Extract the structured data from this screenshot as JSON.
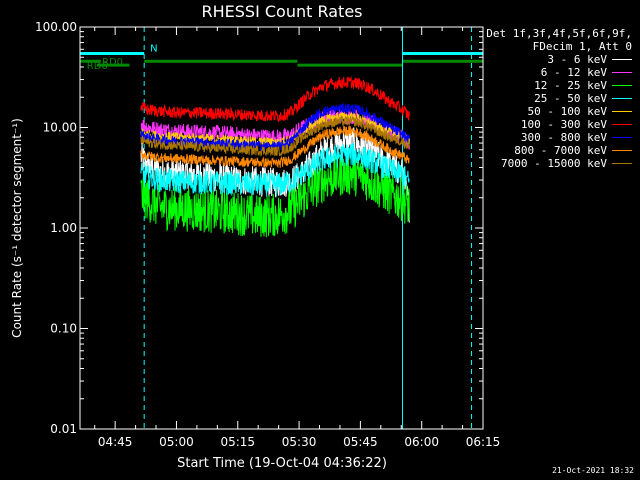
{
  "chart_data": {
    "type": "line",
    "title": "RHESSI Count Rates",
    "xlabel": "Start Time (19-Oct-04 04:36:22)",
    "ylabel": "Count Rate (s⁻¹ detector segment⁻¹)",
    "yscale": "log",
    "ylim": [
      0.01,
      100
    ],
    "yticks": [
      "0.01",
      "0.10",
      "1.00",
      "10.00",
      "100.00"
    ],
    "xticks": [
      "04:45",
      "05:00",
      "05:15",
      "05:30",
      "05:45",
      "06:00",
      "06:15"
    ],
    "xlim_minutes": [
      36.4,
      135.0
    ],
    "legend": {
      "position": "outside-right",
      "header": [
        "Det 1f,3f,4f,5f,6f,9f,",
        "FDecim 1, Att 0"
      ]
    },
    "series": [
      {
        "name": "3 - 6 keV",
        "color": "#ffffff",
        "noise": 0.15,
        "x": [
          51.3,
          53,
          56,
          60,
          65,
          70,
          75,
          80,
          85,
          88,
          90,
          93,
          96,
          100,
          103,
          105,
          107,
          110,
          112.2,
          115.3,
          117
        ],
        "y": [
          5.2,
          4.2,
          3.6,
          3.5,
          3.4,
          3.2,
          3.0,
          2.9,
          2.8,
          2.9,
          3.3,
          4.3,
          5.8,
          7.0,
          7.2,
          6.7,
          6.0,
          5.0,
          4.3,
          3.5,
          1.6
        ]
      },
      {
        "name": "6 - 12 keV",
        "color": "#ff33ff",
        "noise": 0.08,
        "x": [
          51.3,
          53,
          56,
          60,
          65,
          70,
          75,
          80,
          85,
          88,
          90,
          93,
          96,
          100,
          103,
          105,
          107,
          110,
          112.2,
          115.3,
          117
        ],
        "y": [
          11,
          10,
          9.5,
          9.2,
          9.0,
          8.8,
          8.5,
          8.2,
          8.0,
          8.3,
          9.5,
          11,
          12.5,
          13,
          13,
          12.5,
          11.5,
          10,
          9,
          8,
          6.5
        ]
      },
      {
        "name": "12 - 25 keV",
        "color": "#00ff00",
        "noise": 0.22,
        "x": [
          51.3,
          53,
          56,
          60,
          65,
          70,
          75,
          80,
          85,
          88,
          90,
          93,
          96,
          100,
          103,
          105,
          107,
          110,
          112.2,
          115.3,
          117
        ],
        "y": [
          2.2,
          1.9,
          1.6,
          1.55,
          1.5,
          1.45,
          1.4,
          1.3,
          1.35,
          1.5,
          1.8,
          2.4,
          3.0,
          3.4,
          3.5,
          3.3,
          3.0,
          2.5,
          2.2,
          1.9,
          1.7
        ]
      },
      {
        "name": "25 - 50 keV",
        "color": "#00ffff",
        "noise": 0.12,
        "x": [
          51.3,
          53,
          56,
          60,
          65,
          70,
          75,
          80,
          85,
          88,
          90,
          93,
          96,
          100,
          103,
          105,
          107,
          110,
          112.2,
          115.3,
          117
        ],
        "y": [
          3.4,
          3.2,
          3.0,
          2.9,
          2.85,
          2.8,
          2.75,
          2.7,
          2.7,
          2.9,
          3.3,
          4.0,
          4.8,
          5.3,
          5.4,
          5.2,
          4.8,
          4.2,
          3.8,
          3.4,
          2.8
        ]
      },
      {
        "name": "50 - 100 keV",
        "color": "#ffcc00",
        "noise": 0.05,
        "x": [
          51.3,
          53,
          56,
          60,
          65,
          70,
          75,
          80,
          85,
          88,
          90,
          93,
          96,
          100,
          103,
          105,
          107,
          110,
          112.2,
          115.3,
          117
        ],
        "y": [
          9.0,
          8.5,
          8.2,
          8.0,
          7.8,
          7.6,
          7.4,
          7.2,
          7.1,
          7.6,
          8.8,
          10.5,
          12,
          12.8,
          12.8,
          12.2,
          11.2,
          9.8,
          9.0,
          8.2,
          7.5
        ]
      },
      {
        "name": "100 - 300 keV",
        "color": "#ff0000",
        "noise": 0.06,
        "x": [
          51.3,
          53,
          56,
          60,
          65,
          70,
          75,
          80,
          85,
          88,
          90,
          93,
          96,
          100,
          103,
          105,
          107,
          110,
          112.2,
          115.3,
          117
        ],
        "y": [
          16,
          15,
          14.5,
          14,
          14,
          13.8,
          13.5,
          13.2,
          13,
          14,
          17,
          22,
          26,
          28,
          28,
          27,
          25,
          21,
          18,
          15,
          13
        ]
      },
      {
        "name": "300 - 800 keV",
        "color": "#0000ff",
        "noise": 0.05,
        "x": [
          51.3,
          53,
          56,
          60,
          65,
          70,
          75,
          80,
          85,
          88,
          90,
          93,
          96,
          100,
          103,
          105,
          107,
          110,
          112.2,
          115.3,
          117
        ],
        "y": [
          8.5,
          8.0,
          7.6,
          7.4,
          7.2,
          7.0,
          6.8,
          6.6,
          6.5,
          7.2,
          9.0,
          12,
          14.5,
          15.5,
          15.5,
          14.8,
          13.5,
          11.5,
          10,
          8.5,
          7.5
        ]
      },
      {
        "name": "800 - 7000 keV",
        "color": "#ff8800",
        "noise": 0.05,
        "x": [
          51.3,
          53,
          56,
          60,
          65,
          70,
          75,
          80,
          85,
          88,
          90,
          93,
          96,
          100,
          103,
          105,
          107,
          110,
          112.2,
          115.3,
          117
        ],
        "y": [
          5.5,
          5.2,
          5.0,
          4.9,
          4.8,
          4.7,
          4.6,
          4.5,
          4.4,
          4.8,
          5.6,
          7.0,
          8.5,
          9.2,
          9.2,
          8.8,
          8.0,
          6.8,
          6.0,
          5.2,
          4.6
        ]
      },
      {
        "name": "7000 - 15000 keV",
        "color": "#aa7700",
        "noise": 0.05,
        "x": [
          51.3,
          53,
          56,
          60,
          65,
          70,
          75,
          80,
          85,
          88,
          90,
          93,
          96,
          100,
          103,
          105,
          107,
          110,
          112.2,
          115.3,
          117
        ],
        "y": [
          7.5,
          7.1,
          6.8,
          6.6,
          6.4,
          6.2,
          6.0,
          5.9,
          5.8,
          6.3,
          7.5,
          9.2,
          10.8,
          11.5,
          11.6,
          11.1,
          10.2,
          8.8,
          8.0,
          7.2,
          6.5
        ]
      }
    ],
    "state_bars": [
      {
        "label": "N",
        "color": "#00ffff",
        "y": 72,
        "segments": [
          [
            36.4,
            52.1
          ],
          [
            115.3,
            135
          ]
        ]
      },
      {
        "label": "RD0",
        "color": "#008800",
        "y": 56,
        "segments": [
          [
            36.4,
            41.5
          ],
          [
            52.1,
            89.6
          ],
          [
            115.3,
            135
          ]
        ]
      },
      {
        "label": "RD6",
        "color": "#008800",
        "y": 48,
        "segments": [
          [
            40.5,
            48.5
          ],
          [
            89.6,
            115.3
          ]
        ]
      }
    ],
    "vertical_lines": [
      {
        "x": 36.4,
        "style": "solid",
        "color": "#00ffff"
      },
      {
        "x": 52.1,
        "style": "dashed",
        "color": "#00ffff"
      },
      {
        "x": 115.3,
        "style": "solid",
        "color": "#00ffff"
      },
      {
        "x": 132.2,
        "style": "dashed",
        "color": "#00ffff"
      }
    ]
  },
  "footer": {
    "date": "21-Oct-2021 18:32"
  }
}
